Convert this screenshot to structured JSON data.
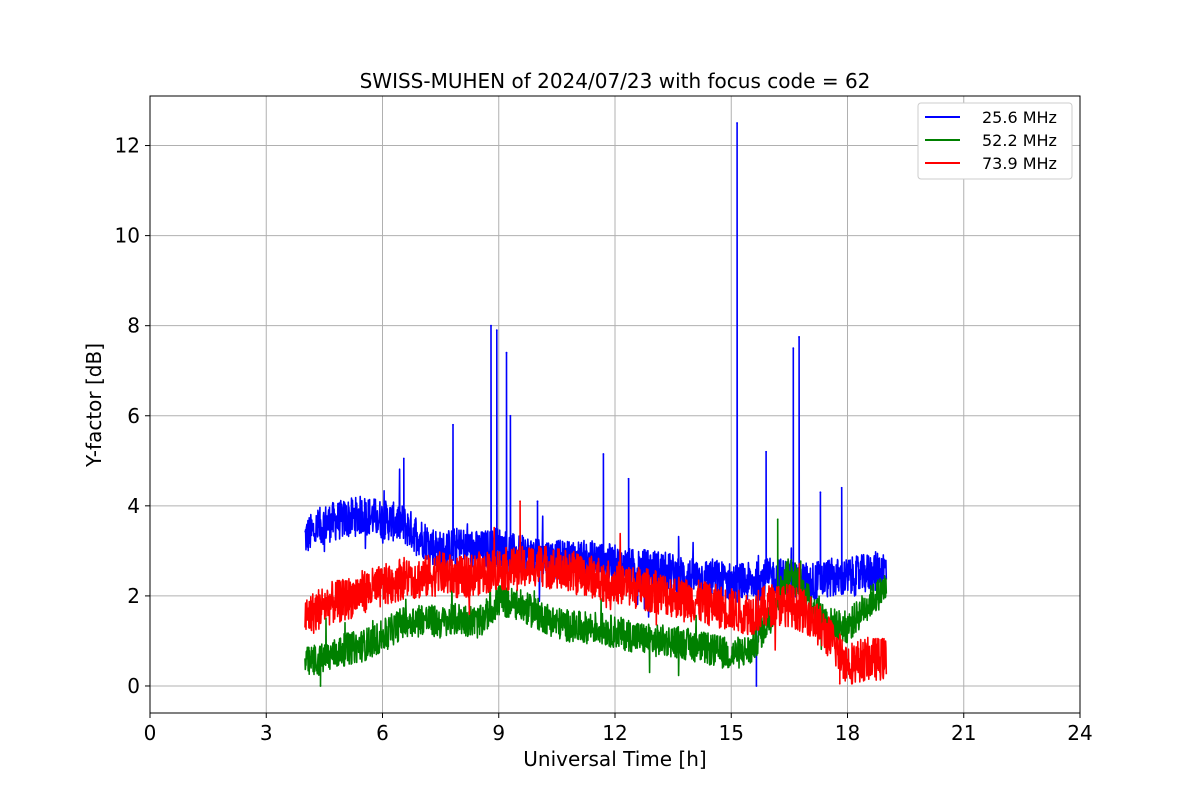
{
  "chart_data": {
    "type": "line",
    "title": "SWISS-MUHEN of 2024/07/23 with focus code = 62",
    "xlabel": "Universal Time [h]",
    "ylabel": "Y-factor [dB]",
    "xlim": [
      0,
      24
    ],
    "ylim": [
      -0.6,
      13.1
    ],
    "xticks": [
      0,
      3,
      6,
      9,
      12,
      15,
      18,
      21,
      24
    ],
    "yticks": [
      0,
      2,
      4,
      6,
      8,
      10,
      12
    ],
    "grid": true,
    "legend_position": "top-right",
    "series": [
      {
        "name": "25.6 MHz",
        "color": "#0000ff",
        "x": [
          4.0,
          4.5,
          5.0,
          5.5,
          6.0,
          6.5,
          7.0,
          7.5,
          8.0,
          8.5,
          9.0,
          9.5,
          10.0,
          10.5,
          11.0,
          11.5,
          12.0,
          12.5,
          13.0,
          13.5,
          14.0,
          14.5,
          15.0,
          15.5,
          16.0,
          16.5,
          17.0,
          17.5,
          18.0,
          18.5,
          19.0
        ],
        "values": [
          3.3,
          3.6,
          3.7,
          3.8,
          3.7,
          3.6,
          3.3,
          3.0,
          3.1,
          3.0,
          3.1,
          2.9,
          2.9,
          2.8,
          2.8,
          2.8,
          2.7,
          2.6,
          2.6,
          2.5,
          2.4,
          2.4,
          2.3,
          2.3,
          2.4,
          2.4,
          2.3,
          2.4,
          2.4,
          2.5,
          2.6
        ],
        "spikes": [
          {
            "x": 6.55,
            "y": 5.05
          },
          {
            "x": 7.82,
            "y": 5.8
          },
          {
            "x": 8.8,
            "y": 8.0
          },
          {
            "x": 8.95,
            "y": 7.9
          },
          {
            "x": 9.2,
            "y": 7.4
          },
          {
            "x": 9.3,
            "y": 6.0
          },
          {
            "x": 10.0,
            "y": 4.1
          },
          {
            "x": 11.7,
            "y": 5.15
          },
          {
            "x": 12.35,
            "y": 4.6
          },
          {
            "x": 15.15,
            "y": 12.5
          },
          {
            "x": 15.9,
            "y": 5.2
          },
          {
            "x": 16.6,
            "y": 7.5
          },
          {
            "x": 16.75,
            "y": 7.75
          },
          {
            "x": 17.3,
            "y": 4.3
          },
          {
            "x": 17.85,
            "y": 4.4
          }
        ],
        "dips": [
          {
            "x": 15.65,
            "y": 0.0
          }
        ]
      },
      {
        "name": "52.2 MHz",
        "color": "#008000",
        "x": [
          4.0,
          4.5,
          5.0,
          5.5,
          6.0,
          6.5,
          7.0,
          7.5,
          8.0,
          8.5,
          9.0,
          9.5,
          10.0,
          10.5,
          11.0,
          11.5,
          12.0,
          12.5,
          13.0,
          13.5,
          14.0,
          14.5,
          15.0,
          15.5,
          16.0,
          16.5,
          17.0,
          17.5,
          18.0,
          18.5,
          19.0
        ],
        "values": [
          0.5,
          0.6,
          0.8,
          0.9,
          1.1,
          1.4,
          1.5,
          1.4,
          1.5,
          1.4,
          1.9,
          1.8,
          1.6,
          1.4,
          1.3,
          1.3,
          1.2,
          1.1,
          1.0,
          1.0,
          0.9,
          0.8,
          0.7,
          0.8,
          1.5,
          2.6,
          1.9,
          1.4,
          1.3,
          1.8,
          2.2
        ],
        "spikes": [
          {
            "x": 16.2,
            "y": 3.7
          }
        ],
        "dips": [
          {
            "x": 4.4,
            "y": 0.0
          }
        ]
      },
      {
        "name": "73.9 MHz",
        "color": "#ff0000",
        "x": [
          4.0,
          4.5,
          5.0,
          5.5,
          6.0,
          6.5,
          7.0,
          7.5,
          8.0,
          8.5,
          9.0,
          9.5,
          10.0,
          10.5,
          11.0,
          11.5,
          12.0,
          12.5,
          13.0,
          13.5,
          14.0,
          14.5,
          15.0,
          15.5,
          16.0,
          16.5,
          17.0,
          17.5,
          18.0,
          18.5,
          19.0
        ],
        "values": [
          1.5,
          1.8,
          1.9,
          2.1,
          2.2,
          2.4,
          2.4,
          2.5,
          2.4,
          2.5,
          2.6,
          2.6,
          2.7,
          2.6,
          2.5,
          2.4,
          2.3,
          2.2,
          2.1,
          2.0,
          1.9,
          1.8,
          1.7,
          1.6,
          1.8,
          1.8,
          1.6,
          1.1,
          0.5,
          0.6,
          0.6
        ],
        "spikes": [
          {
            "x": 9.55,
            "y": 4.1
          }
        ],
        "dips": [
          {
            "x": 17.8,
            "y": 0.05
          }
        ]
      }
    ]
  }
}
